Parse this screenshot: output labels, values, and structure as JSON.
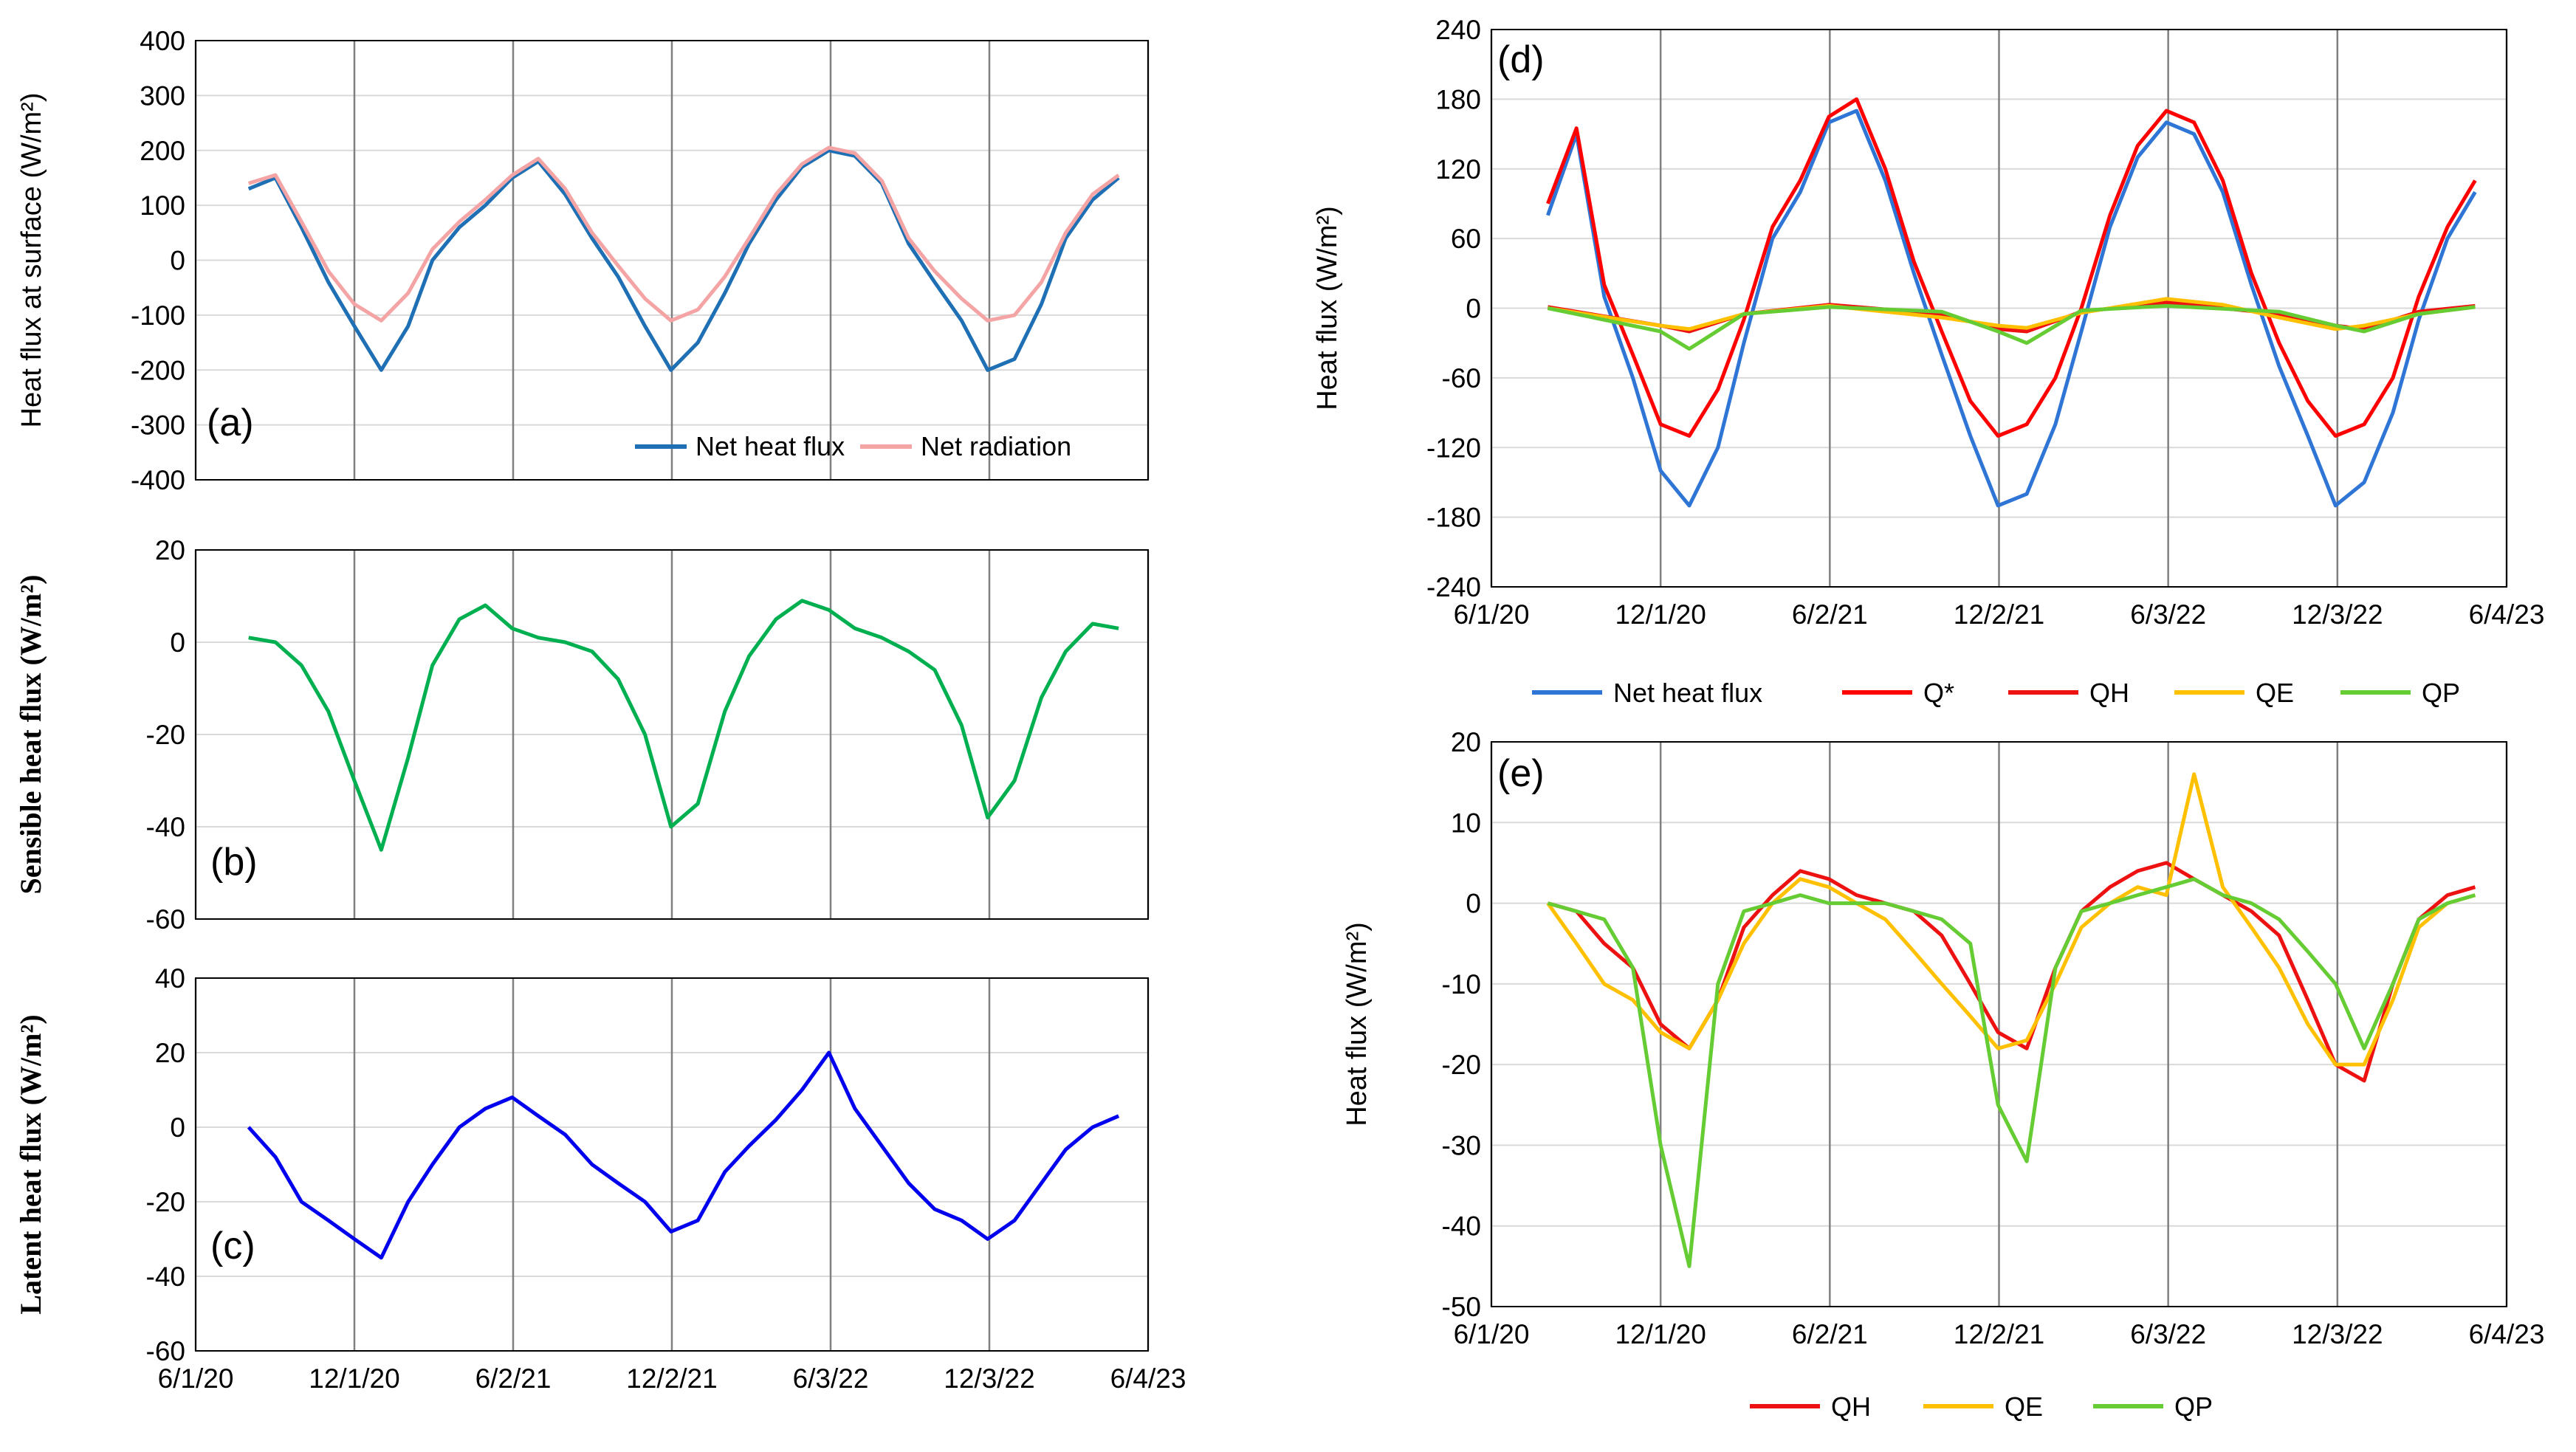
{
  "x_tick_labels": [
    "6/1/20",
    "12/1/20",
    "6/2/21",
    "12/2/21",
    "6/3/22",
    "12/3/22",
    "6/4/23"
  ],
  "colors": {
    "net_heat_flux_a": "#1f6fb4",
    "net_radiation": "#f4a4a4",
    "sensible": "#00b050",
    "latent": "#0000ee",
    "net_heat_flux_d": "#2e75d6",
    "qstar": "#ff0000",
    "qh": "#ee1111",
    "qe": "#ffc000",
    "qp": "#66cc33"
  },
  "chart_data": [
    {
      "id": "a",
      "type": "line",
      "panel_label": "(a)",
      "ylabel": "Heat flux at surface (W/m²)",
      "ylim": [
        -400,
        400
      ],
      "ytick_step": 100,
      "yticks": [
        "400",
        "300",
        "200",
        "100",
        "0",
        "-100",
        "-200",
        "-300",
        "-400"
      ],
      "x_range": [
        "2020-06-01",
        "2023-06-04"
      ],
      "legend": [
        "Net heat flux",
        "Net radiation"
      ],
      "series": [
        {
          "name": "Net heat flux",
          "color_key": "net_heat_flux_a",
          "x": [
            "2020-08-01",
            "2020-09-01",
            "2020-10-01",
            "2020-11-01",
            "2020-12-01",
            "2021-01-01",
            "2021-02-01",
            "2021-03-01",
            "2021-04-01",
            "2021-05-01",
            "2021-06-01",
            "2021-07-01",
            "2021-08-01",
            "2021-09-01",
            "2021-10-01",
            "2021-11-01",
            "2021-12-01",
            "2022-01-01",
            "2022-02-01",
            "2022-03-01",
            "2022-04-01",
            "2022-05-01",
            "2022-06-01",
            "2022-07-01",
            "2022-08-01",
            "2022-09-01",
            "2022-10-01",
            "2022-11-01",
            "2022-12-01",
            "2023-01-01",
            "2023-02-01",
            "2023-03-01",
            "2023-04-01",
            "2023-05-01"
          ],
          "values": [
            130,
            150,
            60,
            -40,
            -120,
            -200,
            -120,
            0,
            60,
            100,
            150,
            180,
            120,
            40,
            -30,
            -120,
            -200,
            -150,
            -60,
            30,
            110,
            170,
            200,
            190,
            140,
            30,
            -40,
            -110,
            -200,
            -180,
            -80,
            40,
            110,
            150
          ]
        },
        {
          "name": "Net radiation",
          "color_key": "net_radiation",
          "x": [
            "2020-08-01",
            "2020-09-01",
            "2020-10-01",
            "2020-11-01",
            "2020-12-01",
            "2021-01-01",
            "2021-02-01",
            "2021-03-01",
            "2021-04-01",
            "2021-05-01",
            "2021-06-01",
            "2021-07-01",
            "2021-08-01",
            "2021-09-01",
            "2021-10-01",
            "2021-11-01",
            "2021-12-01",
            "2022-01-01",
            "2022-02-01",
            "2022-03-01",
            "2022-04-01",
            "2022-05-01",
            "2022-06-01",
            "2022-07-01",
            "2022-08-01",
            "2022-09-01",
            "2022-10-01",
            "2022-11-01",
            "2022-12-01",
            "2023-01-01",
            "2023-02-01",
            "2023-03-01",
            "2023-04-01",
            "2023-05-01"
          ],
          "values": [
            140,
            155,
            70,
            -20,
            -80,
            -110,
            -60,
            20,
            70,
            110,
            155,
            185,
            130,
            50,
            -10,
            -70,
            -110,
            -90,
            -30,
            40,
            120,
            175,
            205,
            195,
            145,
            40,
            -20,
            -70,
            -110,
            -100,
            -40,
            50,
            120,
            155
          ]
        }
      ]
    },
    {
      "id": "b",
      "type": "line",
      "panel_label": "(b)",
      "ylabel": "Sensible heat flux (W/m²)",
      "ylim": [
        -60,
        20
      ],
      "ytick_step": 20,
      "yticks": [
        "20",
        "0",
        "-20",
        "-40",
        "-60"
      ],
      "x_range": [
        "2020-06-01",
        "2023-06-04"
      ],
      "series": [
        {
          "name": "Sensible heat flux",
          "color_key": "sensible",
          "x": [
            "2020-08-01",
            "2020-09-01",
            "2020-10-01",
            "2020-11-01",
            "2020-12-01",
            "2021-01-01",
            "2021-02-01",
            "2021-03-01",
            "2021-04-01",
            "2021-05-01",
            "2021-06-01",
            "2021-07-01",
            "2021-08-01",
            "2021-09-01",
            "2021-10-01",
            "2021-11-01",
            "2021-12-01",
            "2022-01-01",
            "2022-02-01",
            "2022-03-01",
            "2022-04-01",
            "2022-05-01",
            "2022-06-01",
            "2022-07-01",
            "2022-08-01",
            "2022-09-01",
            "2022-10-01",
            "2022-11-01",
            "2022-12-01",
            "2023-01-01",
            "2023-02-01",
            "2023-03-01",
            "2023-04-01",
            "2023-05-01"
          ],
          "values": [
            1,
            0,
            -5,
            -15,
            -30,
            -45,
            -25,
            -5,
            5,
            8,
            3,
            1,
            0,
            -2,
            -8,
            -20,
            -40,
            -35,
            -15,
            -3,
            5,
            9,
            7,
            3,
            1,
            -2,
            -6,
            -18,
            -38,
            -30,
            -12,
            -2,
            4,
            3
          ]
        }
      ]
    },
    {
      "id": "c",
      "type": "line",
      "panel_label": "(c)",
      "ylabel": "Latent heat flux (W/m²)",
      "ylim": [
        -60,
        40
      ],
      "ytick_step": 20,
      "yticks": [
        "40",
        "20",
        "0",
        "-20",
        "-40",
        "-60"
      ],
      "x_range": [
        "2020-06-01",
        "2023-06-04"
      ],
      "series": [
        {
          "name": "Latent heat flux",
          "color_key": "latent",
          "x": [
            "2020-08-01",
            "2020-09-01",
            "2020-10-01",
            "2020-11-01",
            "2020-12-01",
            "2021-01-01",
            "2021-02-01",
            "2021-03-01",
            "2021-04-01",
            "2021-05-01",
            "2021-06-01",
            "2021-07-01",
            "2021-08-01",
            "2021-09-01",
            "2021-10-01",
            "2021-11-01",
            "2021-12-01",
            "2022-01-01",
            "2022-02-01",
            "2022-03-01",
            "2022-04-01",
            "2022-05-01",
            "2022-06-01",
            "2022-07-01",
            "2022-08-01",
            "2022-09-01",
            "2022-10-01",
            "2022-11-01",
            "2022-12-01",
            "2023-01-01",
            "2023-02-01",
            "2023-03-01",
            "2023-04-01",
            "2023-05-01"
          ],
          "values": [
            0,
            -8,
            -20,
            -25,
            -30,
            -35,
            -20,
            -10,
            0,
            5,
            8,
            3,
            -2,
            -10,
            -15,
            -20,
            -28,
            -25,
            -12,
            -5,
            2,
            10,
            20,
            5,
            -5,
            -15,
            -22,
            -25,
            -30,
            -25,
            -15,
            -6,
            0,
            3
          ]
        }
      ]
    },
    {
      "id": "d",
      "type": "line",
      "panel_label": "(d)",
      "ylabel": "Heat flux (W/m²)",
      "ylim": [
        -240,
        240
      ],
      "ytick_step": 60,
      "yticks": [
        "240",
        "180",
        "120",
        "60",
        "0",
        "-60",
        "-120",
        "-180",
        "-240"
      ],
      "x_range": [
        "2020-06-01",
        "2023-06-04"
      ],
      "legend": [
        "Net heat flux",
        "Q*",
        "QH",
        "QE",
        "QP"
      ],
      "series": [
        {
          "name": "Net heat flux",
          "color_key": "net_heat_flux_d",
          "x": [
            "2020-08-01",
            "2020-09-01",
            "2020-10-01",
            "2020-11-01",
            "2020-12-01",
            "2021-01-01",
            "2021-02-01",
            "2021-03-01",
            "2021-04-01",
            "2021-05-01",
            "2021-06-01",
            "2021-07-01",
            "2021-08-01",
            "2021-09-01",
            "2021-10-01",
            "2021-11-01",
            "2021-12-01",
            "2022-01-01",
            "2022-02-01",
            "2022-03-01",
            "2022-04-01",
            "2022-05-01",
            "2022-06-01",
            "2022-07-01",
            "2022-08-01",
            "2022-09-01",
            "2022-10-01",
            "2022-11-01",
            "2022-12-01",
            "2023-01-01",
            "2023-02-01",
            "2023-03-01",
            "2023-04-01",
            "2023-05-01"
          ],
          "values": [
            80,
            150,
            10,
            -60,
            -140,
            -170,
            -120,
            -30,
            60,
            100,
            160,
            170,
            110,
            30,
            -40,
            -110,
            -170,
            -160,
            -100,
            -20,
            70,
            130,
            160,
            150,
            100,
            20,
            -50,
            -110,
            -170,
            -150,
            -90,
            -10,
            60,
            100
          ]
        },
        {
          "name": "Q*",
          "color_key": "qstar",
          "x": [
            "2020-08-01",
            "2020-09-01",
            "2020-10-01",
            "2020-11-01",
            "2020-12-01",
            "2021-01-01",
            "2021-02-01",
            "2021-03-01",
            "2021-04-01",
            "2021-05-01",
            "2021-06-01",
            "2021-07-01",
            "2021-08-01",
            "2021-09-01",
            "2021-10-01",
            "2021-11-01",
            "2021-12-01",
            "2022-01-01",
            "2022-02-01",
            "2022-03-01",
            "2022-04-01",
            "2022-05-01",
            "2022-06-01",
            "2022-07-01",
            "2022-08-01",
            "2022-09-01",
            "2022-10-01",
            "2022-11-01",
            "2022-12-01",
            "2023-01-01",
            "2023-02-01",
            "2023-03-01",
            "2023-04-01",
            "2023-05-01"
          ],
          "values": [
            90,
            155,
            20,
            -40,
            -100,
            -110,
            -70,
            -10,
            70,
            110,
            165,
            180,
            120,
            40,
            -20,
            -80,
            -110,
            -100,
            -60,
            0,
            80,
            140,
            170,
            160,
            110,
            30,
            -30,
            -80,
            -110,
            -100,
            -60,
            10,
            70,
            110
          ]
        },
        {
          "name": "QH",
          "color_key": "qh",
          "x": [
            "2020-08-01",
            "2020-12-01",
            "2021-01-01",
            "2021-03-01",
            "2021-06-01",
            "2021-10-01",
            "2021-12-01",
            "2022-01-01",
            "2022-03-01",
            "2022-06-01",
            "2022-10-01",
            "2022-12-01",
            "2023-01-01",
            "2023-03-01",
            "2023-05-01"
          ],
          "values": [
            1,
            -15,
            -20,
            -5,
            3,
            -5,
            -18,
            -20,
            -3,
            5,
            -5,
            -15,
            -18,
            -3,
            2
          ]
        },
        {
          "name": "QE",
          "color_key": "qe",
          "x": [
            "2020-08-01",
            "2020-12-01",
            "2021-01-01",
            "2021-03-01",
            "2021-06-01",
            "2021-10-01",
            "2021-12-01",
            "2022-01-01",
            "2022-03-01",
            "2022-06-01",
            "2022-08-01",
            "2022-10-01",
            "2022-12-01",
            "2023-01-01",
            "2023-03-01",
            "2023-05-01"
          ],
          "values": [
            0,
            -15,
            -18,
            -5,
            2,
            -8,
            -15,
            -17,
            -4,
            8,
            3,
            -8,
            -18,
            -15,
            -5,
            1
          ]
        },
        {
          "name": "QP",
          "color_key": "qp",
          "x": [
            "2020-08-01",
            "2020-12-01",
            "2021-01-01",
            "2021-03-01",
            "2021-06-01",
            "2021-10-01",
            "2021-12-01",
            "2022-01-01",
            "2022-03-01",
            "2022-06-01",
            "2022-10-01",
            "2022-12-01",
            "2023-01-01",
            "2023-03-01",
            "2023-05-01"
          ],
          "values": [
            0,
            -20,
            -35,
            -5,
            1,
            -3,
            -20,
            -30,
            -2,
            2,
            -3,
            -15,
            -20,
            -5,
            1
          ]
        }
      ]
    },
    {
      "id": "e",
      "type": "line",
      "panel_label": "(e)",
      "ylabel": "Heat flux (W/m²)",
      "ylim": [
        -50,
        20
      ],
      "ytick_step": 10,
      "yticks": [
        "20",
        "10",
        "0",
        "-10",
        "-20",
        "-30",
        "-40",
        "-50"
      ],
      "x_range": [
        "2020-06-01",
        "2023-06-04"
      ],
      "legend": [
        "QH",
        "QE",
        "QP"
      ],
      "series": [
        {
          "name": "QH",
          "color_key": "qh",
          "x": [
            "2020-08-01",
            "2020-09-01",
            "2020-10-01",
            "2020-11-01",
            "2020-12-01",
            "2021-01-01",
            "2021-02-01",
            "2021-03-01",
            "2021-04-01",
            "2021-05-01",
            "2021-06-01",
            "2021-07-01",
            "2021-08-01",
            "2021-09-01",
            "2021-10-01",
            "2021-11-01",
            "2021-12-01",
            "2022-01-01",
            "2022-02-01",
            "2022-03-01",
            "2022-04-01",
            "2022-05-01",
            "2022-06-01",
            "2022-07-01",
            "2022-08-01",
            "2022-09-01",
            "2022-10-01",
            "2022-11-01",
            "2022-12-01",
            "2023-01-01",
            "2023-02-01",
            "2023-03-01",
            "2023-04-01",
            "2023-05-01"
          ],
          "values": [
            0,
            -1,
            -5,
            -8,
            -15,
            -18,
            -12,
            -3,
            1,
            4,
            3,
            1,
            0,
            -1,
            -4,
            -10,
            -16,
            -18,
            -8,
            -1,
            2,
            4,
            5,
            3,
            1,
            -1,
            -4,
            -12,
            -20,
            -22,
            -10,
            -2,
            1,
            2
          ]
        },
        {
          "name": "QE",
          "color_key": "qe",
          "x": [
            "2020-08-01",
            "2020-09-01",
            "2020-10-01",
            "2020-11-01",
            "2020-12-01",
            "2021-01-01",
            "2021-02-01",
            "2021-03-01",
            "2021-04-01",
            "2021-05-01",
            "2021-06-01",
            "2021-07-01",
            "2021-08-01",
            "2021-09-01",
            "2021-10-01",
            "2021-11-01",
            "2021-12-01",
            "2022-01-01",
            "2022-02-01",
            "2022-03-01",
            "2022-04-01",
            "2022-05-01",
            "2022-06-01",
            "2022-07-01",
            "2022-08-01",
            "2022-09-01",
            "2022-10-01",
            "2022-11-01",
            "2022-12-01",
            "2023-01-01",
            "2023-02-01",
            "2023-03-01",
            "2023-04-01",
            "2023-05-01"
          ],
          "values": [
            0,
            -5,
            -10,
            -12,
            -16,
            -18,
            -12,
            -5,
            0,
            3,
            2,
            0,
            -2,
            -6,
            -10,
            -14,
            -18,
            -17,
            -10,
            -3,
            0,
            2,
            1,
            16,
            2,
            -3,
            -8,
            -15,
            -20,
            -20,
            -12,
            -3,
            0,
            1
          ]
        },
        {
          "name": "QP",
          "color_key": "qp",
          "x": [
            "2020-08-01",
            "2020-09-01",
            "2020-10-01",
            "2020-11-01",
            "2020-12-01",
            "2021-01-01",
            "2021-02-01",
            "2021-03-01",
            "2021-04-01",
            "2021-05-01",
            "2021-06-01",
            "2021-07-01",
            "2021-08-01",
            "2021-09-01",
            "2021-10-01",
            "2021-11-01",
            "2021-12-01",
            "2022-01-01",
            "2022-02-01",
            "2022-03-01",
            "2022-04-01",
            "2022-05-01",
            "2022-06-01",
            "2022-07-01",
            "2022-08-01",
            "2022-09-01",
            "2022-10-01",
            "2022-11-01",
            "2022-12-01",
            "2023-01-01",
            "2023-02-01",
            "2023-03-01",
            "2023-04-01",
            "2023-05-01"
          ],
          "values": [
            0,
            -1,
            -2,
            -8,
            -30,
            -45,
            -10,
            -1,
            0,
            1,
            0,
            0,
            0,
            -1,
            -2,
            -5,
            -25,
            -32,
            -8,
            -1,
            0,
            1,
            2,
            3,
            1,
            0,
            -2,
            -6,
            -10,
            -18,
            -10,
            -2,
            0,
            1
          ]
        }
      ]
    }
  ]
}
